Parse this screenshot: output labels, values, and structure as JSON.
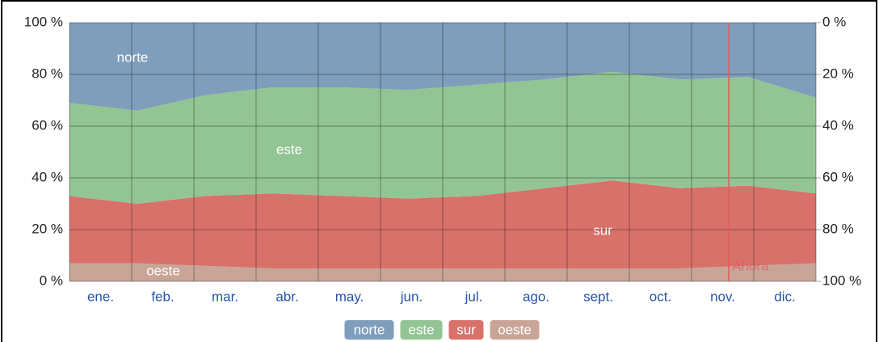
{
  "chart_data": {
    "type": "stacked_area",
    "categories": [
      "ene.",
      "feb.",
      "mar.",
      "abr.",
      "may.",
      "jun.",
      "jul.",
      "ago.",
      "sept.",
      "oct.",
      "nov.",
      "dic."
    ],
    "series": [
      {
        "name": "oeste",
        "color": "#c9a597",
        "values": [
          7,
          7,
          6,
          5,
          5,
          5,
          5,
          5,
          5,
          5,
          6,
          7
        ]
      },
      {
        "name": "sur",
        "color": "#d9716b",
        "values": [
          26,
          23,
          27,
          29,
          28,
          27,
          28,
          31,
          34,
          31,
          31,
          27
        ]
      },
      {
        "name": "este",
        "color": "#92c593",
        "values": [
          36,
          36,
          39,
          41,
          42,
          42,
          43,
          42,
          42,
          42,
          42,
          37
        ]
      },
      {
        "name": "norte",
        "color": "#7f9ebb",
        "values": [
          31,
          34,
          28,
          25,
          25,
          26,
          24,
          22,
          19,
          22,
          21,
          29
        ]
      }
    ],
    "ylim": [
      0,
      100
    ],
    "yticks": [
      {
        "value": 0,
        "label": "0 %"
      },
      {
        "value": 20,
        "label": "20 %"
      },
      {
        "value": 40,
        "label": "40 %"
      },
      {
        "value": 60,
        "label": "60 %"
      },
      {
        "value": 80,
        "label": "80 %"
      },
      {
        "value": 100,
        "label": "100 %"
      }
    ],
    "y2lim": [
      100,
      0
    ],
    "y2ticks": [
      {
        "value": 0,
        "label": "0 %"
      },
      {
        "value": 20,
        "label": "20 %"
      },
      {
        "value": 40,
        "label": "40 %"
      },
      {
        "value": 60,
        "label": "60 %"
      },
      {
        "value": 80,
        "label": "80 %"
      },
      {
        "value": 100,
        "label": "100 %"
      }
    ],
    "grid": true,
    "legend": "bottom",
    "annotations": [
      {
        "text": "Ahora",
        "color": "#e05a5a"
      }
    ]
  }
}
